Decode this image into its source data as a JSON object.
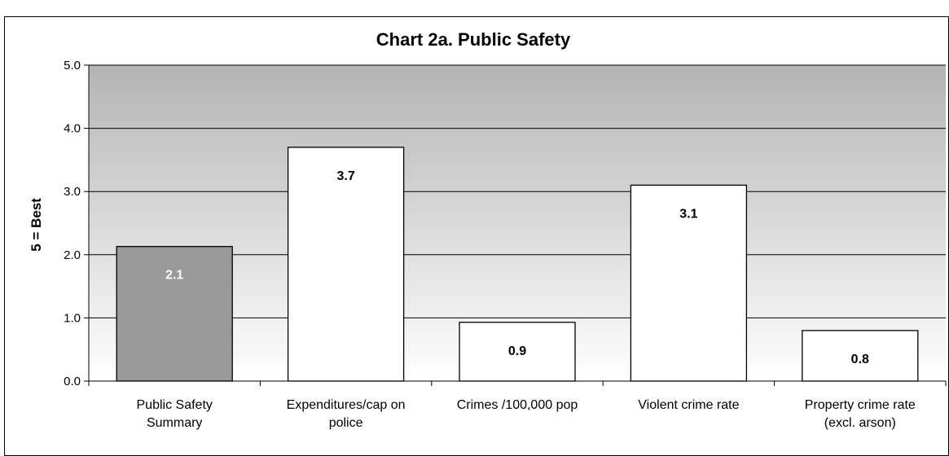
{
  "chart_data": {
    "type": "bar",
    "title": "Chart 2a. Public Safety",
    "ylabel": "5 = Best",
    "xlabel": "",
    "ylim": [
      0,
      5
    ],
    "yticks": [
      "0.0",
      "1.0",
      "2.0",
      "3.0",
      "4.0",
      "5.0"
    ],
    "categories": [
      [
        "Public Safety",
        "Summary"
      ],
      [
        "Expenditures/cap on",
        "police"
      ],
      [
        "Crimes /100,000 pop"
      ],
      [
        "Violent crime rate"
      ],
      [
        "Property crime rate",
        "(excl. arson)"
      ]
    ],
    "values": [
      2.13,
      3.7,
      0.93,
      3.1,
      0.8
    ],
    "data_labels": [
      "2.1",
      "3.7",
      "0.9",
      "3.1",
      "0.8"
    ],
    "bar_colors": [
      "#999999",
      "#ffffff",
      "#ffffff",
      "#ffffff",
      "#ffffff"
    ],
    "label_colors": [
      "#ffffff",
      "#000000",
      "#000000",
      "#000000",
      "#000000"
    ],
    "grid": true,
    "plot_background": "gradient gray to white",
    "legend": "none"
  }
}
